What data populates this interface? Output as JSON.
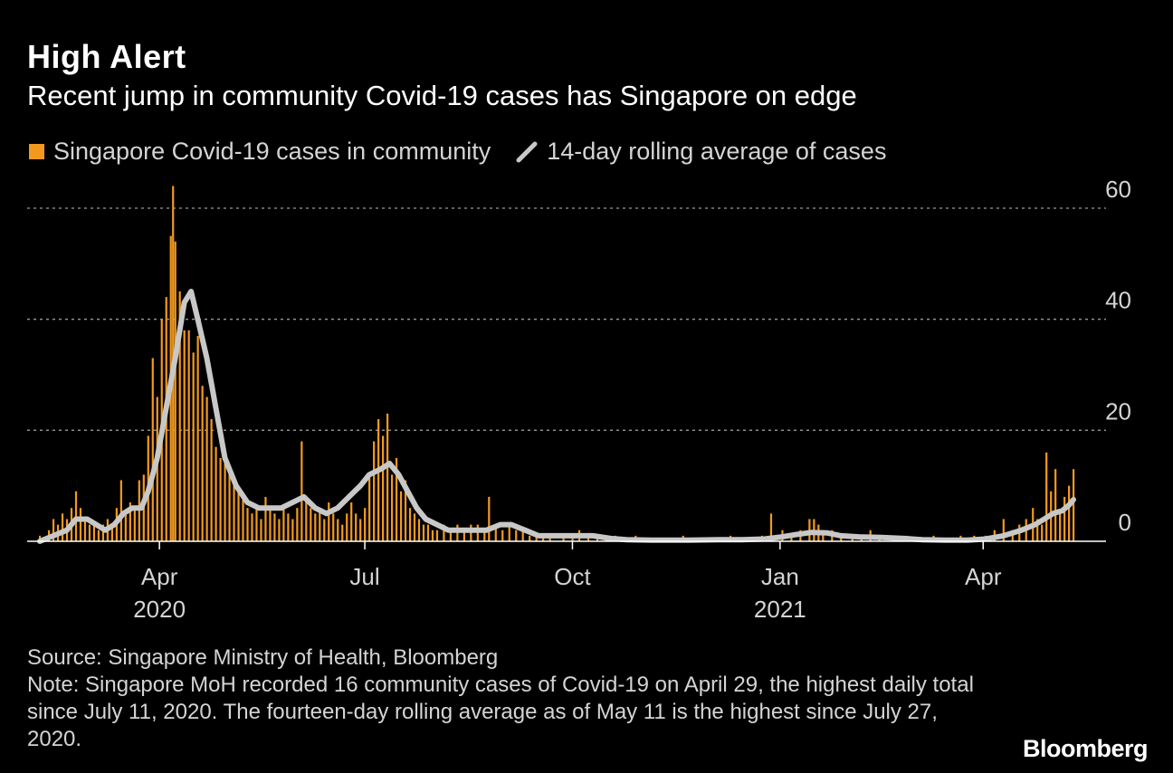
{
  "title": "High Alert",
  "subtitle": "Recent jump in community Covid-19 cases has Singapore on edge",
  "legend": {
    "bars_label": "Singapore Covid-19 cases in community",
    "line_label": "14-day rolling average of cases"
  },
  "footer": {
    "source": "Source: Singapore Ministry of Health, Bloomberg",
    "note": "Note: Singapore MoH recorded 16 community cases of Covid-19 on April 29, the highest daily total since July 11, 2020. The fourteen-day rolling average as of May 11 is the highest since July 27, 2020."
  },
  "brand": "Bloomberg",
  "colors": {
    "bars": "#f39a1e",
    "line": "#c8c8c8",
    "grid": "#9a9a9a",
    "text": "#ffffff",
    "muted": "#d4d4d4",
    "background": "#000000"
  },
  "chart_data": {
    "type": "bar",
    "x_start": "2020-02-08",
    "x_end": "2021-05-11",
    "ylim": [
      0,
      60
    ],
    "yticks": [
      0,
      20,
      40,
      60
    ],
    "grid": true,
    "legend_placement": "top-left",
    "xticks": [
      {
        "date": "2020-04-01",
        "label": "Apr",
        "year": "2020"
      },
      {
        "date": "2020-07-01",
        "label": "Jul",
        "year": ""
      },
      {
        "date": "2020-10-01",
        "label": "Oct",
        "year": ""
      },
      {
        "date": "2021-01-01",
        "label": "Jan",
        "year": "2021"
      },
      {
        "date": "2021-04-01",
        "label": "Apr",
        "year": ""
      }
    ],
    "series": [
      {
        "name": "Singapore Covid-19 cases in community",
        "kind": "bar",
        "points": [
          [
            "2020-02-08",
            1
          ],
          [
            "2020-02-12",
            2
          ],
          [
            "2020-02-14",
            4
          ],
          [
            "2020-02-16",
            3
          ],
          [
            "2020-02-18",
            5
          ],
          [
            "2020-02-20",
            4
          ],
          [
            "2020-02-22",
            6
          ],
          [
            "2020-02-24",
            9
          ],
          [
            "2020-02-26",
            6
          ],
          [
            "2020-02-28",
            4
          ],
          [
            "2020-03-01",
            3
          ],
          [
            "2020-03-03",
            3
          ],
          [
            "2020-03-05",
            2
          ],
          [
            "2020-03-07",
            3
          ],
          [
            "2020-03-09",
            4
          ],
          [
            "2020-03-11",
            3
          ],
          [
            "2020-03-13",
            6
          ],
          [
            "2020-03-15",
            11
          ],
          [
            "2020-03-17",
            5
          ],
          [
            "2020-03-19",
            7
          ],
          [
            "2020-03-21",
            6
          ],
          [
            "2020-03-23",
            11
          ],
          [
            "2020-03-25",
            12
          ],
          [
            "2020-03-27",
            19
          ],
          [
            "2020-03-29",
            33
          ],
          [
            "2020-03-31",
            26
          ],
          [
            "2020-04-02",
            40
          ],
          [
            "2020-04-04",
            44
          ],
          [
            "2020-04-06",
            55
          ],
          [
            "2020-04-07",
            64
          ],
          [
            "2020-04-08",
            54
          ],
          [
            "2020-04-10",
            45
          ],
          [
            "2020-04-12",
            38
          ],
          [
            "2020-04-14",
            38
          ],
          [
            "2020-04-16",
            34
          ],
          [
            "2020-04-18",
            37
          ],
          [
            "2020-04-20",
            28
          ],
          [
            "2020-04-22",
            26
          ],
          [
            "2020-04-24",
            22
          ],
          [
            "2020-04-26",
            17
          ],
          [
            "2020-04-28",
            15
          ],
          [
            "2020-04-30",
            14
          ],
          [
            "2020-05-02",
            12
          ],
          [
            "2020-05-04",
            10
          ],
          [
            "2020-05-06",
            9
          ],
          [
            "2020-05-08",
            8
          ],
          [
            "2020-05-10",
            6
          ],
          [
            "2020-05-12",
            5
          ],
          [
            "2020-05-14",
            6
          ],
          [
            "2020-05-16",
            4
          ],
          [
            "2020-05-18",
            8
          ],
          [
            "2020-05-20",
            6
          ],
          [
            "2020-05-22",
            5
          ],
          [
            "2020-05-24",
            4
          ],
          [
            "2020-05-26",
            6
          ],
          [
            "2020-05-28",
            5
          ],
          [
            "2020-05-30",
            4
          ],
          [
            "2020-06-01",
            6
          ],
          [
            "2020-06-03",
            18
          ],
          [
            "2020-06-05",
            8
          ],
          [
            "2020-06-07",
            6
          ],
          [
            "2020-06-09",
            5
          ],
          [
            "2020-06-11",
            6
          ],
          [
            "2020-06-13",
            4
          ],
          [
            "2020-06-15",
            7
          ],
          [
            "2020-06-17",
            5
          ],
          [
            "2020-06-19",
            4
          ],
          [
            "2020-06-21",
            3
          ],
          [
            "2020-06-23",
            5
          ],
          [
            "2020-06-25",
            7
          ],
          [
            "2020-06-27",
            5
          ],
          [
            "2020-06-29",
            4
          ],
          [
            "2020-07-01",
            6
          ],
          [
            "2020-07-03",
            12
          ],
          [
            "2020-07-05",
            18
          ],
          [
            "2020-07-07",
            22
          ],
          [
            "2020-07-09",
            19
          ],
          [
            "2020-07-11",
            23
          ],
          [
            "2020-07-13",
            12
          ],
          [
            "2020-07-15",
            15
          ],
          [
            "2020-07-17",
            9
          ],
          [
            "2020-07-19",
            11
          ],
          [
            "2020-07-21",
            6
          ],
          [
            "2020-07-23",
            5
          ],
          [
            "2020-07-25",
            4
          ],
          [
            "2020-07-27",
            3
          ],
          [
            "2020-07-29",
            3
          ],
          [
            "2020-07-31",
            2
          ],
          [
            "2020-08-02",
            2
          ],
          [
            "2020-08-05",
            3
          ],
          [
            "2020-08-08",
            2
          ],
          [
            "2020-08-11",
            3
          ],
          [
            "2020-08-14",
            2
          ],
          [
            "2020-08-17",
            3
          ],
          [
            "2020-08-20",
            3
          ],
          [
            "2020-08-23",
            2
          ],
          [
            "2020-08-25",
            8
          ],
          [
            "2020-08-28",
            3
          ],
          [
            "2020-08-31",
            2
          ],
          [
            "2020-09-03",
            3
          ],
          [
            "2020-09-06",
            2
          ],
          [
            "2020-09-09",
            2
          ],
          [
            "2020-09-12",
            1
          ],
          [
            "2020-09-15",
            1
          ],
          [
            "2020-09-18",
            1
          ],
          [
            "2020-09-21",
            1
          ],
          [
            "2020-09-24",
            0
          ],
          [
            "2020-09-27",
            1
          ],
          [
            "2020-10-01",
            1
          ],
          [
            "2020-10-04",
            2
          ],
          [
            "2020-10-08",
            1
          ],
          [
            "2020-10-12",
            1
          ],
          [
            "2020-10-16",
            1
          ],
          [
            "2020-10-20",
            1
          ],
          [
            "2020-10-24",
            0
          ],
          [
            "2020-10-29",
            1
          ],
          [
            "2020-11-05",
            0
          ],
          [
            "2020-11-12",
            0
          ],
          [
            "2020-11-19",
            1
          ],
          [
            "2020-11-26",
            0
          ],
          [
            "2020-12-03",
            0
          ],
          [
            "2020-12-10",
            1
          ],
          [
            "2020-12-17",
            0
          ],
          [
            "2020-12-24",
            1
          ],
          [
            "2020-12-28",
            5
          ],
          [
            "2021-01-02",
            2
          ],
          [
            "2021-01-06",
            1
          ],
          [
            "2021-01-10",
            2
          ],
          [
            "2021-01-14",
            4
          ],
          [
            "2021-01-16",
            4
          ],
          [
            "2021-01-18",
            3
          ],
          [
            "2021-01-20",
            2
          ],
          [
            "2021-01-24",
            2
          ],
          [
            "2021-01-28",
            1
          ],
          [
            "2021-02-02",
            1
          ],
          [
            "2021-02-06",
            1
          ],
          [
            "2021-02-10",
            2
          ],
          [
            "2021-02-14",
            1
          ],
          [
            "2021-02-20",
            1
          ],
          [
            "2021-02-26",
            1
          ],
          [
            "2021-03-04",
            0
          ],
          [
            "2021-03-10",
            1
          ],
          [
            "2021-03-16",
            0
          ],
          [
            "2021-03-22",
            1
          ],
          [
            "2021-03-28",
            1
          ],
          [
            "2021-04-02",
            1
          ],
          [
            "2021-04-06",
            2
          ],
          [
            "2021-04-10",
            4
          ],
          [
            "2021-04-14",
            2
          ],
          [
            "2021-04-17",
            3
          ],
          [
            "2021-04-20",
            4
          ],
          [
            "2021-04-23",
            6
          ],
          [
            "2021-04-25",
            4
          ],
          [
            "2021-04-27",
            3
          ],
          [
            "2021-04-29",
            16
          ],
          [
            "2021-05-01",
            9
          ],
          [
            "2021-05-03",
            13
          ],
          [
            "2021-05-05",
            5
          ],
          [
            "2021-05-07",
            8
          ],
          [
            "2021-05-09",
            10
          ],
          [
            "2021-05-11",
            13
          ]
        ]
      },
      {
        "name": "14-day rolling average of cases",
        "kind": "line",
        "points": [
          [
            "2020-02-08",
            0
          ],
          [
            "2020-02-14",
            1
          ],
          [
            "2020-02-20",
            2
          ],
          [
            "2020-02-24",
            4
          ],
          [
            "2020-02-29",
            4
          ],
          [
            "2020-03-04",
            3
          ],
          [
            "2020-03-08",
            2
          ],
          [
            "2020-03-12",
            3
          ],
          [
            "2020-03-16",
            5
          ],
          [
            "2020-03-20",
            6
          ],
          [
            "2020-03-24",
            6
          ],
          [
            "2020-03-27",
            9
          ],
          [
            "2020-03-31",
            15
          ],
          [
            "2020-04-04",
            24
          ],
          [
            "2020-04-08",
            33
          ],
          [
            "2020-04-12",
            43
          ],
          [
            "2020-04-15",
            45
          ],
          [
            "2020-04-18",
            40
          ],
          [
            "2020-04-22",
            33
          ],
          [
            "2020-04-26",
            24
          ],
          [
            "2020-04-30",
            15
          ],
          [
            "2020-05-05",
            10
          ],
          [
            "2020-05-10",
            7
          ],
          [
            "2020-05-15",
            6
          ],
          [
            "2020-05-20",
            6
          ],
          [
            "2020-05-25",
            6
          ],
          [
            "2020-05-30",
            7
          ],
          [
            "2020-06-04",
            8
          ],
          [
            "2020-06-09",
            6
          ],
          [
            "2020-06-14",
            5
          ],
          [
            "2020-06-19",
            6
          ],
          [
            "2020-06-24",
            8
          ],
          [
            "2020-06-29",
            10
          ],
          [
            "2020-07-03",
            12
          ],
          [
            "2020-07-08",
            13
          ],
          [
            "2020-07-12",
            14
          ],
          [
            "2020-07-16",
            12
          ],
          [
            "2020-07-20",
            9
          ],
          [
            "2020-07-24",
            6
          ],
          [
            "2020-07-28",
            4
          ],
          [
            "2020-08-02",
            3
          ],
          [
            "2020-08-07",
            2
          ],
          [
            "2020-08-12",
            2
          ],
          [
            "2020-08-18",
            2
          ],
          [
            "2020-08-24",
            2
          ],
          [
            "2020-08-30",
            3
          ],
          [
            "2020-09-04",
            3
          ],
          [
            "2020-09-10",
            2
          ],
          [
            "2020-09-16",
            1
          ],
          [
            "2020-09-22",
            1
          ],
          [
            "2020-09-28",
            1
          ],
          [
            "2020-10-04",
            1
          ],
          [
            "2020-10-10",
            1
          ],
          [
            "2020-10-18",
            0.5
          ],
          [
            "2020-10-25",
            0.3
          ],
          [
            "2020-11-05",
            0.2
          ],
          [
            "2020-11-20",
            0.2
          ],
          [
            "2020-12-05",
            0.3
          ],
          [
            "2020-12-15",
            0.3
          ],
          [
            "2020-12-25",
            0.4
          ],
          [
            "2021-01-02",
            0.8
          ],
          [
            "2021-01-08",
            1.2
          ],
          [
            "2021-01-15",
            1.6
          ],
          [
            "2021-01-22",
            1.5
          ],
          [
            "2021-01-28",
            1
          ],
          [
            "2021-02-05",
            0.8
          ],
          [
            "2021-02-15",
            0.7
          ],
          [
            "2021-02-25",
            0.5
          ],
          [
            "2021-03-05",
            0.3
          ],
          [
            "2021-03-15",
            0.2
          ],
          [
            "2021-03-25",
            0.2
          ],
          [
            "2021-04-02",
            0.4
          ],
          [
            "2021-04-10",
            1
          ],
          [
            "2021-04-18",
            2
          ],
          [
            "2021-04-24",
            3
          ],
          [
            "2021-04-28",
            4
          ],
          [
            "2021-05-02",
            5
          ],
          [
            "2021-05-06",
            5.5
          ],
          [
            "2021-05-09",
            6.5
          ],
          [
            "2021-05-11",
            7.5
          ]
        ]
      }
    ]
  }
}
